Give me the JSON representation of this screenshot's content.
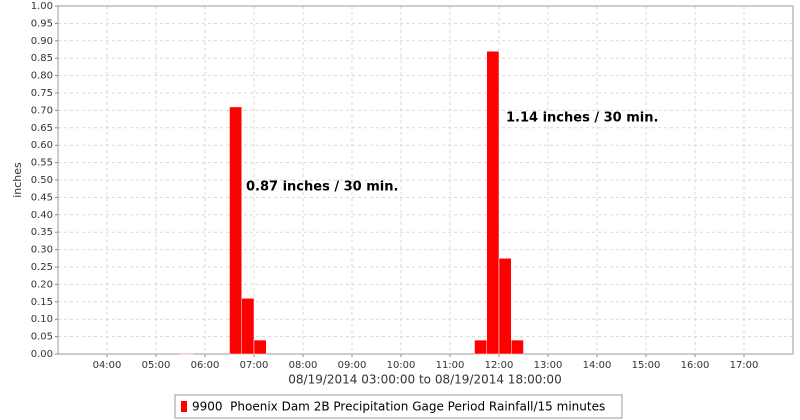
{
  "chart_data": {
    "type": "histogram",
    "x_label": "08/19/2014 03:00:00 to 08/19/2014 18:00:00",
    "y_label": "inches",
    "annotations": [
      "0.87 inches / 30 min.",
      "1.14 inches / 30 min."
    ],
    "bins": [
      5.5,
      5.75,
      6,
      6.25,
      6.5,
      6.75,
      7,
      7.25,
      7.5,
      7.75,
      8,
      8.25,
      8.5,
      8.75,
      9,
      9.25,
      9.5,
      9.75,
      10,
      10.25,
      10.5,
      10.75,
      11,
      11.25,
      11.5,
      11.75,
      12,
      12.25,
      12.5
    ],
    "series": [
      {
        "name": "9900  Phoenix Dam 2B Precipitation Gage Period Rainfall/15 minutes",
        "color": "#ff0000",
        "values": [
          0.002,
          0,
          0,
          0,
          0.71,
          0.16,
          0.04,
          0,
          0,
          0,
          0,
          0,
          0,
          0,
          0,
          0,
          0,
          0,
          0,
          0,
          0,
          0,
          0,
          0,
          0.04,
          0.87,
          0.275,
          0.04
        ]
      }
    ],
    "xlim": [
      3,
      18
    ],
    "xticks": [
      {
        "value": 4,
        "label": "04:00"
      },
      {
        "value": 5,
        "label": "05:00"
      },
      {
        "value": 6,
        "label": "06:00"
      },
      {
        "value": 7,
        "label": "07:00"
      },
      {
        "value": 8,
        "label": "08:00"
      },
      {
        "value": 9,
        "label": "09:00"
      },
      {
        "value": 10,
        "label": "10:00"
      },
      {
        "value": 11,
        "label": "11:00"
      },
      {
        "value": 12,
        "label": "12:00"
      },
      {
        "value": 13,
        "label": "13:00"
      },
      {
        "value": 14,
        "label": "14:00"
      },
      {
        "value": 15,
        "label": "15:00"
      },
      {
        "value": 16,
        "label": "16:00"
      },
      {
        "value": 17,
        "label": "17:00"
      }
    ],
    "ylim": [
      0,
      1
    ],
    "yticks": [
      {
        "value": 0,
        "label": "0.00"
      },
      {
        "value": 0.05,
        "label": "0.05"
      },
      {
        "value": 0.1,
        "label": "0.10"
      },
      {
        "value": 0.15,
        "label": "0.15"
      },
      {
        "value": 0.2,
        "label": "0.20"
      },
      {
        "value": 0.25,
        "label": "0.25"
      },
      {
        "value": 0.3,
        "label": "0.30"
      },
      {
        "value": 0.35,
        "label": "0.35"
      },
      {
        "value": 0.4,
        "label": "0.40"
      },
      {
        "value": 0.45,
        "label": "0.45"
      },
      {
        "value": 0.5,
        "label": "0.50"
      },
      {
        "value": 0.55,
        "label": "0.55"
      },
      {
        "value": 0.6,
        "label": "0.60"
      },
      {
        "value": 0.65,
        "label": "0.65"
      },
      {
        "value": 0.7,
        "label": "0.70"
      },
      {
        "value": 0.75,
        "label": "0.75"
      },
      {
        "value": 0.8,
        "label": "0.80"
      },
      {
        "value": 0.85,
        "label": "0.85"
      },
      {
        "value": 0.9,
        "label": "0.90"
      },
      {
        "value": 0.95,
        "label": "0.95"
      },
      {
        "value": 1,
        "label": "1.00"
      }
    ],
    "grid": true
  }
}
